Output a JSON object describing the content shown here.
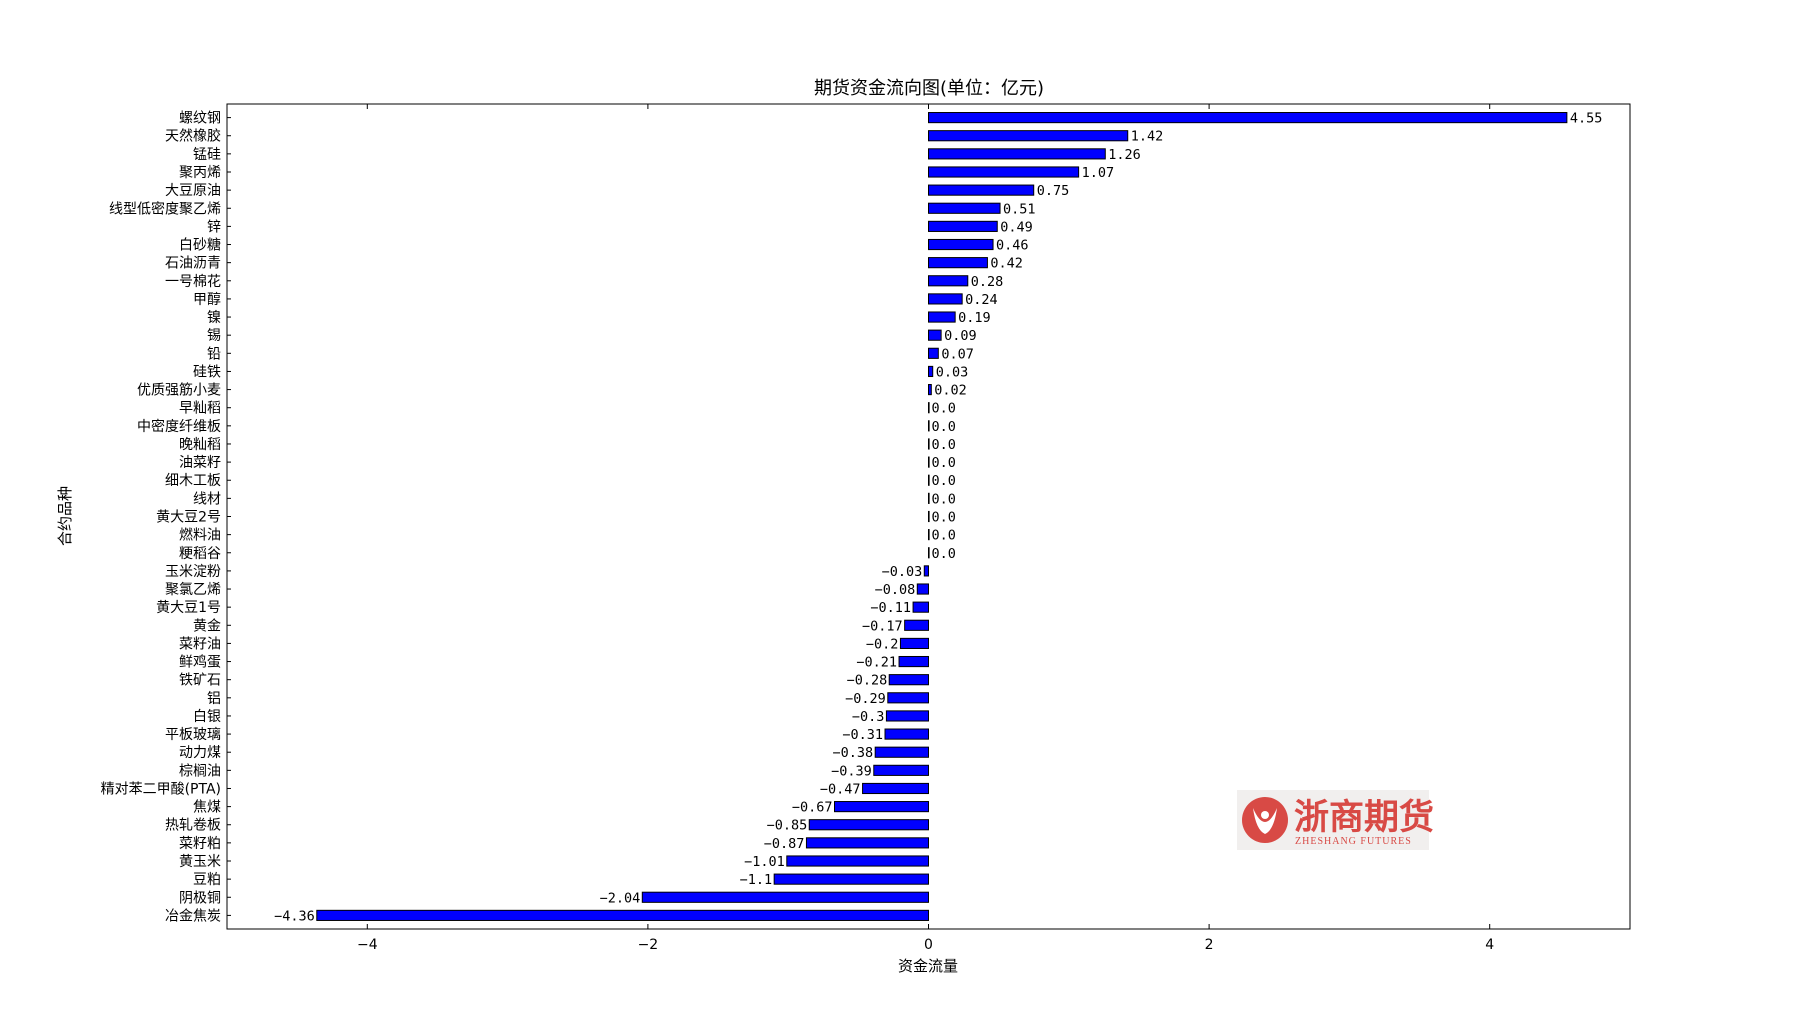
{
  "chart_data": {
    "type": "bar",
    "orientation": "horizontal",
    "title": "期货资金流向图(单位：亿元)",
    "xlabel": "资金流量",
    "ylabel": "合约品种",
    "xlim": [
      -5,
      5
    ],
    "xticks": [
      -4,
      -2,
      0,
      2,
      4
    ],
    "xtick_labels": [
      "−4",
      "−2",
      "0",
      "2",
      "4"
    ],
    "bar_color": "#0000ff",
    "bar_edge_color": "#000000",
    "grid": false,
    "categories": [
      "螺纹钢",
      "天然橡胶",
      "锰硅",
      "聚丙烯",
      "大豆原油",
      "线型低密度聚乙烯",
      "锌",
      "白砂糖",
      "石油沥青",
      "一号棉花",
      "甲醇",
      "镍",
      "锡",
      "铅",
      "硅铁",
      "优质强筋小麦",
      "早籼稻",
      "中密度纤维板",
      "晚籼稻",
      "油菜籽",
      "细木工板",
      "线材",
      "黄大豆2号",
      "燃料油",
      "粳稻谷",
      "玉米淀粉",
      "聚氯乙烯",
      "黄大豆1号",
      "黄金",
      "菜籽油",
      "鲜鸡蛋",
      "铁矿石",
      "铝",
      "白银",
      "平板玻璃",
      "动力煤",
      "棕榈油",
      "精对苯二甲酸(PTA)",
      "焦煤",
      "热轧卷板",
      "菜籽粕",
      "黄玉米",
      "豆粕",
      "阴极铜",
      "冶金焦炭"
    ],
    "values": [
      4.55,
      1.42,
      1.26,
      1.07,
      0.75,
      0.51,
      0.49,
      0.46,
      0.42,
      0.28,
      0.24,
      0.19,
      0.09,
      0.07,
      0.03,
      0.02,
      0.0,
      0.0,
      0.0,
      0.0,
      0.0,
      0.0,
      0.0,
      0.0,
      0.0,
      -0.03,
      -0.08,
      -0.11,
      -0.17,
      -0.2,
      -0.21,
      -0.28,
      -0.29,
      -0.3,
      -0.31,
      -0.38,
      -0.39,
      -0.47,
      -0.67,
      -0.85,
      -0.87,
      -1.01,
      -1.1,
      -2.04,
      -4.36
    ],
    "value_labels": [
      "4.55",
      "1.42",
      "1.26",
      "1.07",
      "0.75",
      "0.51",
      "0.49",
      "0.46",
      "0.42",
      "0.28",
      "0.24",
      "0.19",
      "0.09",
      "0.07",
      "0.03",
      "0.02",
      "0.0",
      "0.0",
      "0.0",
      "0.0",
      "0.0",
      "0.0",
      "0.0",
      "0.0",
      "0.0",
      "−0.03",
      "−0.08",
      "−0.11",
      "−0.17",
      "−0.2",
      "−0.21",
      "−0.28",
      "−0.29",
      "−0.3",
      "−0.31",
      "−0.38",
      "−0.39",
      "−0.47",
      "−0.67",
      "−0.85",
      "−0.87",
      "−1.01",
      "−1.1",
      "−2.04",
      "−4.36"
    ]
  },
  "watermark": {
    "text_cn": "浙商期货",
    "text_en": "ZHESHANG FUTURES",
    "color": "#d84a45"
  }
}
